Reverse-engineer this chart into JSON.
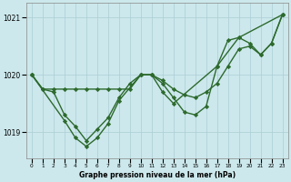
{
  "x": [
    0,
    1,
    2,
    3,
    4,
    5,
    6,
    7,
    8,
    9,
    10,
    11,
    12,
    13,
    14,
    15,
    16,
    17,
    18,
    19,
    20,
    21,
    22,
    23
  ],
  "line1": [
    1020.0,
    1019.75,
    1019.75,
    1019.75,
    1019.75,
    1019.75,
    1019.75,
    1019.75,
    1019.75,
    1019.75,
    1020.0,
    1020.0,
    1019.9,
    1019.75,
    1019.65,
    1019.6,
    1019.7,
    1019.85,
    1020.15,
    1020.45,
    1020.5,
    1020.35,
    1020.55,
    1021.05
  ],
  "line2": [
    1020.0,
    1019.75,
    1019.7,
    1019.3,
    1019.1,
    1018.85,
    1019.05,
    1019.25,
    1019.6,
    1019.85,
    1020.0,
    1020.0,
    1019.85,
    1019.6,
    1019.35,
    1019.3,
    1019.45,
    1020.15,
    1020.6,
    1020.65,
    1020.55,
    1020.35,
    1020.55,
    1021.05
  ],
  "line3_x": [
    0,
    3,
    4,
    5,
    6,
    7,
    8,
    10,
    11,
    12,
    13,
    17,
    19,
    23
  ],
  "line3_y": [
    1020.0,
    1019.2,
    1018.9,
    1018.75,
    1018.9,
    1019.15,
    1019.55,
    1020.0,
    1020.0,
    1019.7,
    1019.5,
    1020.15,
    1020.65,
    1021.05
  ],
  "ylim": [
    1018.55,
    1021.25
  ],
  "yticks": [
    1019,
    1020,
    1021
  ],
  "xticks": [
    0,
    1,
    2,
    3,
    4,
    5,
    6,
    7,
    8,
    9,
    10,
    11,
    12,
    13,
    14,
    15,
    16,
    17,
    18,
    19,
    20,
    21,
    22,
    23
  ],
  "line_color": "#2d6a2d",
  "bg_color": "#cce8ec",
  "grid_color": "#aacdd4",
  "xlabel": "Graphe pression niveau de la mer (hPa)",
  "marker": "D",
  "markersize": 2.2,
  "linewidth": 1.0
}
